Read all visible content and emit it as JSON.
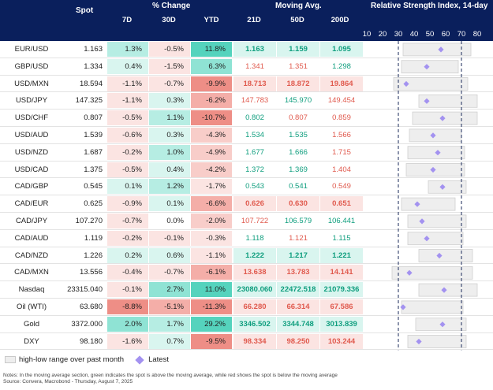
{
  "header": {
    "spot": "Spot",
    "pct_change": "% Change",
    "d7": "7D",
    "d30": "30D",
    "ytd": "YTD",
    "mov_avg": "Moving Avg.",
    "d21": "21D",
    "d50": "50D",
    "d200": "200D",
    "rsi_title": "Relative Strength Index, 14-day"
  },
  "colors": {
    "header_bg": "#0a1f5c",
    "green_text": "#0f9e7e",
    "red_text": "#e05a4e",
    "marker": "#a392f0"
  },
  "chart_data": {
    "type": "table",
    "rsi_axis": {
      "ticks": [
        10,
        20,
        30,
        40,
        50,
        60,
        70,
        80
      ],
      "range": [
        10,
        80
      ],
      "ref_lines": [
        30,
        70
      ]
    },
    "rows": [
      {
        "ticker": "EUR/USD",
        "spot": "1.163",
        "d7": "1.3%",
        "d30": "-0.5%",
        "ytd": "11.8%",
        "ma21": "1.163",
        "ma50": "1.159",
        "ma200": "1.095",
        "ma21_state": "up",
        "ma50_state": "up",
        "ma200_state": "up",
        "ma_bold": true,
        "rsi": {
          "low": 33,
          "high": 76,
          "latest": 57
        }
      },
      {
        "ticker": "GBP/USD",
        "spot": "1.334",
        "d7": "0.4%",
        "d30": "-1.5%",
        "ytd": "6.3%",
        "ma21": "1.341",
        "ma50": "1.351",
        "ma200": "1.298",
        "ma21_state": "down",
        "ma50_state": "down",
        "ma200_state": "up",
        "ma_bold": false,
        "rsi": {
          "low": 32,
          "high": 68,
          "latest": 48
        }
      },
      {
        "ticker": "USD/MXN",
        "spot": "18.594",
        "d7": "-1.1%",
        "d30": "-0.7%",
        "ytd": "-9.9%",
        "ma21": "18.713",
        "ma50": "18.872",
        "ma200": "19.864",
        "ma21_state": "down",
        "ma50_state": "down",
        "ma200_state": "down",
        "ma_bold": true,
        "rsi": {
          "low": 27,
          "high": 74,
          "latest": 35
        }
      },
      {
        "ticker": "USD/JPY",
        "spot": "147.325",
        "d7": "-1.1%",
        "d30": "0.3%",
        "ytd": "-6.2%",
        "ma21": "147.783",
        "ma50": "145.970",
        "ma200": "149.454",
        "ma21_state": "down",
        "ma50_state": "up",
        "ma200_state": "down",
        "ma_bold": false,
        "rsi": {
          "low": 43,
          "high": 80,
          "latest": 48
        }
      },
      {
        "ticker": "USD/CHF",
        "spot": "0.807",
        "d7": "-0.5%",
        "d30": "1.1%",
        "ytd": "-10.7%",
        "ma21": "0.802",
        "ma50": "0.807",
        "ma200": "0.859",
        "ma21_state": "up",
        "ma50_state": "down",
        "ma200_state": "down",
        "ma_bold": false,
        "rsi": {
          "low": 39,
          "high": 80,
          "latest": 58
        }
      },
      {
        "ticker": "USD/AUD",
        "spot": "1.539",
        "d7": "-0.6%",
        "d30": "0.3%",
        "ytd": "-4.3%",
        "ma21": "1.534",
        "ma50": "1.535",
        "ma200": "1.566",
        "ma21_state": "up",
        "ma50_state": "up",
        "ma200_state": "down",
        "ma_bold": false,
        "rsi": {
          "low": 37,
          "high": 70,
          "latest": 52
        }
      },
      {
        "ticker": "USD/NZD",
        "spot": "1.687",
        "d7": "-0.2%",
        "d30": "1.0%",
        "ytd": "-4.9%",
        "ma21": "1.677",
        "ma50": "1.666",
        "ma200": "1.715",
        "ma21_state": "up",
        "ma50_state": "up",
        "ma200_state": "down",
        "ma_bold": false,
        "rsi": {
          "low": 36,
          "high": 72,
          "latest": 55
        }
      },
      {
        "ticker": "USD/CAD",
        "spot": "1.375",
        "d7": "-0.5%",
        "d30": "0.4%",
        "ytd": "-4.2%",
        "ma21": "1.372",
        "ma50": "1.369",
        "ma200": "1.404",
        "ma21_state": "up",
        "ma50_state": "up",
        "ma200_state": "down",
        "ma_bold": false,
        "rsi": {
          "low": 35,
          "high": 72,
          "latest": 52
        }
      },
      {
        "ticker": "CAD/GBP",
        "spot": "0.545",
        "d7": "0.1%",
        "d30": "1.2%",
        "ytd": "-1.7%",
        "ma21": "0.543",
        "ma50": "0.541",
        "ma200": "0.549",
        "ma21_state": "up",
        "ma50_state": "up",
        "ma200_state": "down",
        "ma_bold": false,
        "rsi": {
          "low": 49,
          "high": 73,
          "latest": 58
        }
      },
      {
        "ticker": "CAD/EUR",
        "spot": "0.625",
        "d7": "-0.9%",
        "d30": "0.1%",
        "ytd": "-6.6%",
        "ma21": "0.626",
        "ma50": "0.630",
        "ma200": "0.651",
        "ma21_state": "down",
        "ma50_state": "down",
        "ma200_state": "down",
        "ma_bold": true,
        "rsi": {
          "low": 32,
          "high": 66,
          "latest": 42
        }
      },
      {
        "ticker": "CAD/JPY",
        "spot": "107.270",
        "d7": "-0.7%",
        "d30": "0.0%",
        "ytd": "-2.0%",
        "ma21": "107.722",
        "ma50": "106.579",
        "ma200": "106.441",
        "ma21_state": "down",
        "ma50_state": "up",
        "ma200_state": "up",
        "ma_bold": false,
        "rsi": {
          "low": 36,
          "high": 73,
          "latest": 45
        }
      },
      {
        "ticker": "CAD/AUD",
        "spot": "1.119",
        "d7": "-0.2%",
        "d30": "-0.1%",
        "ytd": "-0.3%",
        "ma21": "1.118",
        "ma50": "1.121",
        "ma200": "1.115",
        "ma21_state": "up",
        "ma50_state": "down",
        "ma200_state": "up",
        "ma_bold": false,
        "rsi": {
          "low": 36,
          "high": 71,
          "latest": 48
        }
      },
      {
        "ticker": "CAD/NZD",
        "spot": "1.226",
        "d7": "0.2%",
        "d30": "0.6%",
        "ytd": "-1.1%",
        "ma21": "1.222",
        "ma50": "1.217",
        "ma200": "1.221",
        "ma21_state": "up",
        "ma50_state": "up",
        "ma200_state": "up",
        "ma_bold": true,
        "rsi": {
          "low": 43,
          "high": 77,
          "latest": 56
        }
      },
      {
        "ticker": "CAD/MXN",
        "spot": "13.556",
        "d7": "-0.4%",
        "d30": "-0.7%",
        "ytd": "-6.1%",
        "ma21": "13.638",
        "ma50": "13.783",
        "ma200": "14.141",
        "ma21_state": "down",
        "ma50_state": "down",
        "ma200_state": "down",
        "ma_bold": true,
        "rsi": {
          "low": 26,
          "high": 77,
          "latest": 37
        }
      },
      {
        "ticker": "Nasdaq",
        "spot": "23315.040",
        "d7": "-0.1%",
        "d30": "2.7%",
        "ytd": "11.0%",
        "ma21": "23080.060",
        "ma50": "22472.518",
        "ma200": "21079.336",
        "ma21_state": "up",
        "ma50_state": "up",
        "ma200_state": "up",
        "ma_bold": true,
        "rsi": {
          "low": 43,
          "high": 80,
          "latest": 59
        }
      },
      {
        "ticker": "Oil (WTI)",
        "spot": "63.680",
        "d7": "-8.8%",
        "d30": "-5.1%",
        "ytd": "-11.3%",
        "ma21": "66.280",
        "ma50": "66.314",
        "ma200": "67.586",
        "ma21_state": "down",
        "ma50_state": "down",
        "ma200_state": "down",
        "ma_bold": true,
        "rsi": {
          "low": 32,
          "high": 71,
          "latest": 33
        }
      },
      {
        "ticker": "Gold",
        "spot": "3372.000",
        "d7": "2.0%",
        "d30": "1.7%",
        "ytd": "29.2%",
        "ma21": "3346.502",
        "ma50": "3344.748",
        "ma200": "3013.839",
        "ma21_state": "up",
        "ma50_state": "up",
        "ma200_state": "up",
        "ma_bold": true,
        "rsi": {
          "low": 41,
          "high": 73,
          "latest": 58
        }
      },
      {
        "ticker": "DXY",
        "spot": "98.180",
        "d7": "-1.6%",
        "d30": "0.7%",
        "ytd": "-9.5%",
        "ma21": "98.334",
        "ma50": "98.250",
        "ma200": "103.244",
        "ma21_state": "down",
        "ma50_state": "down",
        "ma200_state": "down",
        "ma_bold": true,
        "rsi": {
          "low": 36,
          "high": 73,
          "latest": 43
        }
      }
    ]
  },
  "legend": {
    "range_label": "high-low range over past month",
    "latest_label": "Latest"
  },
  "notes": {
    "line1": "Notes: In the moving average section, green indicates the spot is above the moving average, while red shows the spot is below the moving average",
    "line2": "Source: Convera, Macrobond - Thursday, August 7, 2025"
  }
}
